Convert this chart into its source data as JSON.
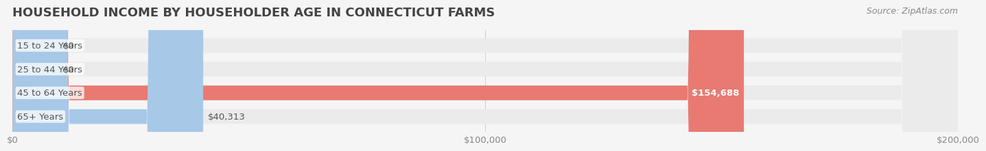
{
  "title": "HOUSEHOLD INCOME BY HOUSEHOLDER AGE IN CONNECTICUT FARMS",
  "source": "Source: ZipAtlas.com",
  "categories": [
    "15 to 24 Years",
    "25 to 44 Years",
    "45 to 64 Years",
    "65+ Years"
  ],
  "values": [
    0,
    0,
    154688,
    40313
  ],
  "bar_colors": [
    "#f4a0b0",
    "#f5c98a",
    "#e87a72",
    "#a8c8e8"
  ],
  "bar_bg_color": "#ebebeb",
  "background_color": "#f5f5f5",
  "xlim": [
    0,
    200000
  ],
  "xticks": [
    0,
    100000,
    200000
  ],
  "xtick_labels": [
    "$0",
    "$100,000",
    "$200,000"
  ],
  "value_labels": [
    "$0",
    "$0",
    "$154,688",
    "$40,313"
  ],
  "title_fontsize": 13,
  "label_fontsize": 9.5,
  "source_fontsize": 9
}
